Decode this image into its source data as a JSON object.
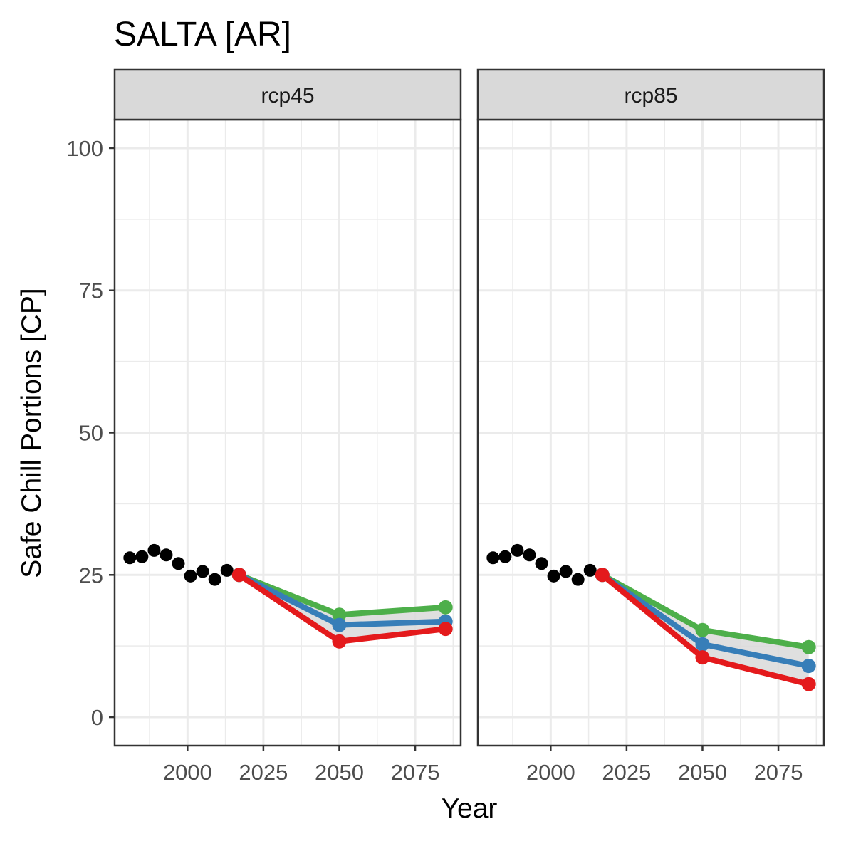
{
  "chart_data": {
    "type": "line",
    "title": "SALTA [AR]",
    "xlabel": "Year",
    "ylabel": "Safe Chill Portions [CP]",
    "xlim": [
      1976,
      2090
    ],
    "ylim": [
      -5,
      105
    ],
    "x_ticks": [
      2000,
      2025,
      2050,
      2075
    ],
    "y_ticks": [
      0,
      25,
      50,
      75,
      100
    ],
    "grid": true,
    "legend": "none",
    "colors": {
      "historic": "#000000",
      "green": "#4daf4a",
      "blue": "#377eb8",
      "red": "#e41a1c",
      "ribbon": "#d9d9d9"
    },
    "panels": [
      {
        "label": "rcp45",
        "historic": {
          "x": [
            1981,
            1985,
            1989,
            1993,
            1997,
            2001,
            2005,
            2009,
            2013
          ],
          "y": [
            28.0,
            28.2,
            29.3,
            28.5,
            27.0,
            24.8,
            25.6,
            24.2,
            25.8
          ]
        },
        "series": [
          {
            "color_key": "green",
            "x": [
              2017,
              2050,
              2085
            ],
            "y": [
              25.0,
              18.0,
              19.3
            ]
          },
          {
            "color_key": "blue",
            "x": [
              2017,
              2050,
              2085
            ],
            "y": [
              25.0,
              16.2,
              16.8
            ]
          },
          {
            "color_key": "red",
            "x": [
              2017,
              2050,
              2085
            ],
            "y": [
              25.0,
              13.3,
              15.5
            ]
          }
        ]
      },
      {
        "label": "rcp85",
        "historic": {
          "x": [
            1981,
            1985,
            1989,
            1993,
            1997,
            2001,
            2005,
            2009,
            2013
          ],
          "y": [
            28.0,
            28.2,
            29.3,
            28.5,
            27.0,
            24.8,
            25.6,
            24.2,
            25.8
          ]
        },
        "series": [
          {
            "color_key": "green",
            "x": [
              2017,
              2050,
              2085
            ],
            "y": [
              25.0,
              15.3,
              12.3
            ]
          },
          {
            "color_key": "blue",
            "x": [
              2017,
              2050,
              2085
            ],
            "y": [
              25.0,
              12.8,
              9.0
            ]
          },
          {
            "color_key": "red",
            "x": [
              2017,
              2050,
              2085
            ],
            "y": [
              25.0,
              10.5,
              5.8
            ]
          }
        ]
      }
    ]
  }
}
